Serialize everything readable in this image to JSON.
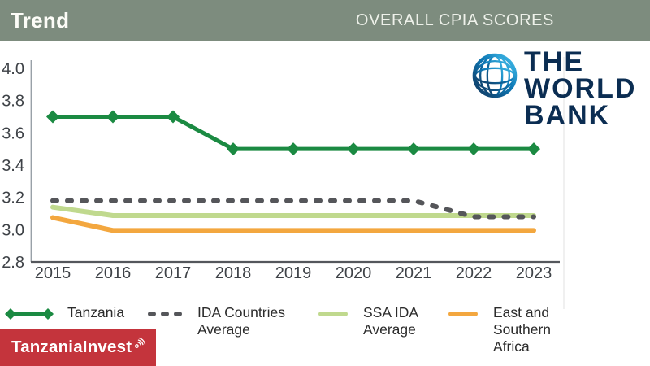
{
  "header": {
    "title": "Trend",
    "subtitle": "OVERALL CPIA SCORES"
  },
  "logo": {
    "name": "The World Bank",
    "lines": [
      "THE",
      "WORLD",
      "BANK"
    ]
  },
  "watermark": {
    "text": "TanzaniaInvest",
    "icon": "signal-waves-icon"
  },
  "colors": {
    "header_bg": "#7d8c7e",
    "header_text": "#fdfdf8",
    "wb_navy": "#0b2d52",
    "badge_red": "#c4343c",
    "axis_text": "#3e4247",
    "x_axis_line": "#54575c",
    "y_axis_line": "#99a1a8"
  },
  "chart_data": {
    "type": "line",
    "title": "OVERALL CPIA SCORES",
    "xlabel": "",
    "ylabel": "",
    "x": [
      2015,
      2016,
      2017,
      2018,
      2019,
      2020,
      2021,
      2022,
      2023
    ],
    "ylim": [
      2.8,
      4.0
    ],
    "yticks": [
      2.8,
      3.0,
      3.2,
      3.4,
      3.6,
      3.8,
      4.0
    ],
    "grid": false,
    "legend_position": "bottom",
    "series": [
      {
        "name": "Tanzania",
        "color": "#1b8a42",
        "style": "solid",
        "marker": "diamond",
        "values": [
          3.7,
          3.7,
          3.7,
          3.5,
          3.5,
          3.5,
          3.5,
          3.5,
          3.5
        ]
      },
      {
        "name": "IDA Countries Average",
        "color": "#55565a",
        "style": "dashed",
        "marker": "none",
        "values": [
          3.2,
          3.2,
          3.2,
          3.2,
          3.2,
          3.2,
          3.2,
          3.1,
          3.1
        ]
      },
      {
        "name": "SSA IDA Average",
        "color": "#c0d98e",
        "style": "solid",
        "marker": "none",
        "values": [
          3.2,
          3.1,
          3.1,
          3.1,
          3.1,
          3.1,
          3.1,
          3.1,
          3.1
        ]
      },
      {
        "name": "East and Southern Africa",
        "color": "#f3a73f",
        "style": "solid",
        "marker": "none",
        "values": [
          3.1,
          3.0,
          3.0,
          3.0,
          3.0,
          3.0,
          3.0,
          3.0,
          3.0
        ]
      }
    ]
  }
}
